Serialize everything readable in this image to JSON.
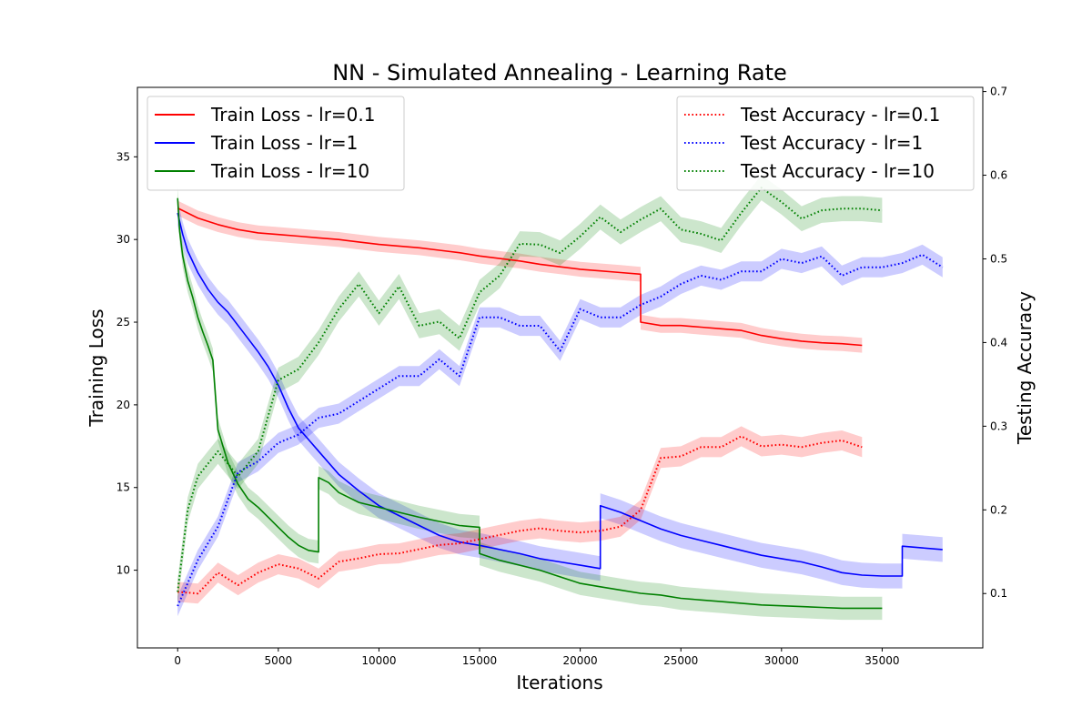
{
  "chart_data": {
    "type": "line",
    "title": "NN - Simulated Annealing - Learning Rate",
    "xlabel": "Iterations",
    "ylabel_left": "Training Loss",
    "ylabel_right": "Testing Accuracy",
    "xlim": [
      -2000,
      40000
    ],
    "ylim_left": [
      5.3,
      39.2
    ],
    "ylim_right": [
      0.035,
      0.705
    ],
    "xticks": [
      0,
      5000,
      10000,
      15000,
      20000,
      25000,
      30000,
      35000
    ],
    "yticks_left": [
      10,
      15,
      20,
      25,
      30,
      35
    ],
    "yticks_right": [
      0.1,
      0.2,
      0.3,
      0.4,
      0.5,
      0.6,
      0.7
    ],
    "grid": false,
    "legend_left_placement": "upper-left",
    "legend_right_placement": "upper-right",
    "series": [
      {
        "name": "Train Loss - lr=0.1",
        "axis": "left",
        "style": "solid",
        "color": "#ff0000",
        "x": [
          0,
          1000,
          2000,
          3000,
          4000,
          5000,
          6000,
          7000,
          8000,
          9000,
          10000,
          11000,
          12000,
          13000,
          14000,
          15000,
          16000,
          17000,
          18000,
          19000,
          20000,
          21000,
          22000,
          23000,
          23000,
          24000,
          25000,
          26000,
          27000,
          28000,
          29000,
          30000,
          31000,
          32000,
          33000,
          34000
        ],
        "y": [
          31.9,
          31.3,
          30.9,
          30.6,
          30.4,
          30.3,
          30.2,
          30.1,
          30.0,
          29.85,
          29.7,
          29.6,
          29.5,
          29.35,
          29.2,
          29.0,
          28.85,
          28.7,
          28.5,
          28.35,
          28.2,
          28.1,
          28.0,
          27.9,
          25.0,
          24.8,
          24.8,
          24.7,
          24.6,
          24.5,
          24.2,
          24.0,
          23.85,
          23.75,
          23.7,
          23.6
        ],
        "band": 0.45
      },
      {
        "name": "Train Loss - lr=1",
        "axis": "left",
        "style": "solid",
        "color": "#0000ff",
        "x": [
          0,
          250,
          500,
          1000,
          1500,
          2000,
          2500,
          3000,
          3500,
          4000,
          4500,
          5000,
          5500,
          6000,
          6500,
          7000,
          8000,
          9000,
          10000,
          11000,
          12000,
          13000,
          14000,
          15000,
          16000,
          17000,
          18000,
          19000,
          20000,
          21000,
          21000,
          22000,
          23000,
          24000,
          25000,
          26000,
          27000,
          28000,
          29000,
          30000,
          31000,
          32000,
          33000,
          34000,
          35000,
          36000,
          36000,
          37000,
          38000
        ],
        "y": [
          31.6,
          30.3,
          29.3,
          28.0,
          27.0,
          26.2,
          25.6,
          24.8,
          24.0,
          23.2,
          22.3,
          21.2,
          19.8,
          18.6,
          17.9,
          17.2,
          15.8,
          14.8,
          13.9,
          13.3,
          12.7,
          12.1,
          11.7,
          11.5,
          11.25,
          11.0,
          10.7,
          10.5,
          10.3,
          10.1,
          13.9,
          13.5,
          13.0,
          12.5,
          12.1,
          11.8,
          11.5,
          11.2,
          10.9,
          10.7,
          10.5,
          10.2,
          9.85,
          9.7,
          9.65,
          9.65,
          11.45,
          11.35,
          11.25
        ],
        "band": 0.75
      },
      {
        "name": "Train Loss - lr=10",
        "axis": "left",
        "style": "solid",
        "color": "#008000",
        "x": [
          0,
          100,
          250,
          500,
          750,
          1000,
          1250,
          1500,
          1750,
          2000,
          2500,
          3000,
          3500,
          4000,
          4500,
          5000,
          5500,
          6000,
          6500,
          7000,
          7000,
          7500,
          8000,
          9000,
          10000,
          11000,
          12000,
          13000,
          14000,
          15000,
          15000,
          16000,
          17000,
          18000,
          19000,
          20000,
          21000,
          22000,
          23000,
          24000,
          25000,
          26000,
          27000,
          28000,
          29000,
          30000,
          31000,
          32000,
          33000,
          34000,
          35000
        ],
        "y": [
          32.5,
          30.5,
          29.0,
          27.5,
          26.5,
          25.3,
          24.4,
          23.6,
          22.7,
          18.5,
          16.5,
          15.2,
          14.3,
          13.8,
          13.2,
          12.6,
          12.0,
          11.5,
          11.2,
          11.1,
          15.6,
          15.3,
          14.7,
          14.1,
          13.8,
          13.5,
          13.2,
          12.95,
          12.7,
          12.6,
          11.0,
          10.6,
          10.3,
          10.0,
          9.6,
          9.2,
          9.0,
          8.8,
          8.6,
          8.5,
          8.3,
          8.2,
          8.1,
          8.0,
          7.9,
          7.85,
          7.8,
          7.75,
          7.7,
          7.7,
          7.7
        ],
        "band": 0.7
      },
      {
        "name": "Test Accuracy - lr=0.1",
        "axis": "right",
        "style": "dotted",
        "color": "#ff0000",
        "x": [
          0,
          1000,
          2000,
          3000,
          4000,
          5000,
          6000,
          7000,
          8000,
          9000,
          10000,
          11000,
          12000,
          13000,
          14000,
          15000,
          16000,
          17000,
          18000,
          19000,
          20000,
          21000,
          22000,
          23000,
          24000,
          25000,
          26000,
          27000,
          28000,
          29000,
          30000,
          31000,
          32000,
          33000,
          34000
        ],
        "y": [
          0.102,
          0.1,
          0.125,
          0.11,
          0.125,
          0.135,
          0.13,
          0.118,
          0.138,
          0.142,
          0.147,
          0.148,
          0.153,
          0.158,
          0.16,
          0.165,
          0.17,
          0.175,
          0.178,
          0.175,
          0.173,
          0.175,
          0.18,
          0.2,
          0.262,
          0.264,
          0.275,
          0.275,
          0.288,
          0.276,
          0.278,
          0.275,
          0.28,
          0.283,
          0.275
        ],
        "band": 0.012
      },
      {
        "name": "Test Accuracy - lr=1",
        "axis": "right",
        "style": "dotted",
        "color": "#0000ff",
        "x": [
          0,
          1000,
          2000,
          3000,
          4000,
          5000,
          6000,
          7000,
          8000,
          9000,
          10000,
          11000,
          12000,
          13000,
          14000,
          15000,
          16000,
          17000,
          18000,
          19000,
          20000,
          21000,
          22000,
          23000,
          24000,
          25000,
          26000,
          27000,
          28000,
          29000,
          30000,
          31000,
          32000,
          33000,
          34000,
          35000,
          36000,
          37000,
          38000
        ],
        "y": [
          0.085,
          0.14,
          0.18,
          0.245,
          0.258,
          0.28,
          0.29,
          0.31,
          0.315,
          0.33,
          0.345,
          0.36,
          0.36,
          0.38,
          0.36,
          0.43,
          0.43,
          0.42,
          0.42,
          0.39,
          0.44,
          0.43,
          0.43,
          0.445,
          0.455,
          0.47,
          0.48,
          0.475,
          0.485,
          0.485,
          0.5,
          0.495,
          0.503,
          0.48,
          0.49,
          0.49,
          0.495,
          0.505,
          0.49
        ],
        "band": 0.012
      },
      {
        "name": "Test Accuracy - lr=10",
        "axis": "right",
        "style": "dotted",
        "color": "#008000",
        "x": [
          0,
          500,
          1000,
          2000,
          3000,
          4000,
          5000,
          6000,
          7000,
          8000,
          9000,
          10000,
          11000,
          12000,
          13000,
          14000,
          15000,
          16000,
          17000,
          18000,
          19000,
          20000,
          21000,
          22000,
          23000,
          24000,
          25000,
          26000,
          27000,
          28000,
          29000,
          30000,
          31000,
          32000,
          33000,
          34000,
          35000
        ],
        "y": [
          0.102,
          0.2,
          0.24,
          0.27,
          0.24,
          0.27,
          0.355,
          0.368,
          0.4,
          0.44,
          0.47,
          0.435,
          0.467,
          0.42,
          0.425,
          0.405,
          0.46,
          0.48,
          0.518,
          0.517,
          0.507,
          0.527,
          0.55,
          0.532,
          0.547,
          0.56,
          0.535,
          0.53,
          0.522,
          0.555,
          0.585,
          0.568,
          0.548,
          0.558,
          0.56,
          0.56,
          0.558
        ],
        "band": 0.015
      }
    ]
  }
}
